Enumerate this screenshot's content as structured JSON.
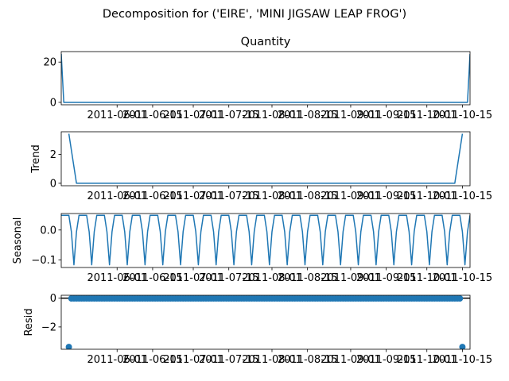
{
  "figure": {
    "suptitle": "Decomposition for ('EIRE', 'MINI JIGSAW LEAP FROG')"
  },
  "chart_data": [
    {
      "type": "line",
      "title": "Quantity",
      "ylabel": "",
      "x_range": [
        "2011-05-10",
        "2011-10-18"
      ],
      "ylim": [
        -1.2,
        25.2
      ],
      "yticks": [
        0,
        20
      ],
      "x_tick_dates": [
        "2011-06-01",
        "2011-06-15",
        "2011-07-01",
        "2011-07-15",
        "2011-08-01",
        "2011-08-15",
        "2011-09-01",
        "2011-09-15",
        "2011-10-01",
        "2011-10-15"
      ],
      "x_tick_labels": [
        "2011-06-01",
        "2011-06-15",
        "2011-07-01",
        "2011-07-15",
        "2011-08-01",
        "2011-08-15",
        "2011-09-01",
        "2011-09-15",
        "2011-10-01",
        "2011-10-15"
      ],
      "color": "#1f77b4",
      "series": [
        {
          "x": [
            "2011-05-10",
            "2011-05-11",
            "2011-10-17",
            "2011-10-18"
          ],
          "y": [
            24,
            0,
            0,
            24
          ]
        }
      ]
    },
    {
      "type": "line",
      "title": "",
      "ylabel": "Trend",
      "x_range": [
        "2011-05-10",
        "2011-10-18"
      ],
      "ylim": [
        -0.17,
        3.57
      ],
      "yticks": [
        0,
        2
      ],
      "x_tick_dates": [
        "2011-06-01",
        "2011-06-15",
        "2011-07-01",
        "2011-07-15",
        "2011-08-01",
        "2011-08-15",
        "2011-09-01",
        "2011-09-15",
        "2011-10-01",
        "2011-10-15"
      ],
      "x_tick_labels": [
        "2011-06-01",
        "2011-06-15",
        "2011-07-01",
        "2011-07-15",
        "2011-08-01",
        "2011-08-15",
        "2011-09-01",
        "2011-09-15",
        "2011-10-01",
        "2011-10-15"
      ],
      "color": "#1f77b4",
      "series": [
        {
          "x": [
            "2011-05-13",
            "2011-05-16",
            "2011-10-12",
            "2011-10-15"
          ],
          "y": [
            3.43,
            0,
            0,
            3.43
          ]
        }
      ]
    },
    {
      "type": "line",
      "title": "",
      "ylabel": "Seasonal",
      "x_range": [
        "2011-05-10",
        "2011-10-18"
      ],
      "ylim": [
        -0.125,
        0.055
      ],
      "yticks": [
        0.0,
        -0.1
      ],
      "x_tick_dates": [
        "2011-06-01",
        "2011-06-15",
        "2011-07-01",
        "2011-07-15",
        "2011-08-01",
        "2011-08-15",
        "2011-09-01",
        "2011-09-15",
        "2011-10-01",
        "2011-10-15"
      ],
      "x_tick_labels": [
        "2011-06-01",
        "2011-06-15",
        "2011-07-01",
        "2011-07-15",
        "2011-08-01",
        "2011-08-15",
        "2011-09-01",
        "2011-09-15",
        "2011-10-01",
        "2011-10-15"
      ],
      "color": "#1f77b4",
      "seasonal_period_days": 7,
      "seasonal_pattern": [
        0.049,
        0.049,
        0.049,
        0.049,
        -0.006,
        -0.116,
        -0.006
      ],
      "x_start": "2011-05-10",
      "x_end": "2011-10-18"
    },
    {
      "type": "scatter",
      "title": "",
      "ylabel": "Resid",
      "x_range": [
        "2011-05-10",
        "2011-10-18"
      ],
      "ylim": [
        -3.55,
        0.2
      ],
      "yticks": [
        0,
        -2
      ],
      "x_tick_dates": [
        "2011-06-01",
        "2011-06-15",
        "2011-07-01",
        "2011-07-15",
        "2011-08-01",
        "2011-08-15",
        "2011-09-01",
        "2011-09-15",
        "2011-10-01",
        "2011-10-15"
      ],
      "x_tick_labels": [
        "2011-06-01",
        "2011-06-15",
        "2011-07-01",
        "2011-07-15",
        "2011-08-01",
        "2011-08-15",
        "2011-09-01",
        "2011-09-15",
        "2011-10-01",
        "2011-10-15"
      ],
      "color": "#1f77b4",
      "zero_line": true,
      "x_start": "2011-05-13",
      "x_end": "2011-10-15",
      "default_value": -0.02,
      "outliers": [
        {
          "x": "2011-05-13",
          "y": -3.39
        },
        {
          "x": "2011-10-15",
          "y": -3.39
        }
      ]
    }
  ]
}
